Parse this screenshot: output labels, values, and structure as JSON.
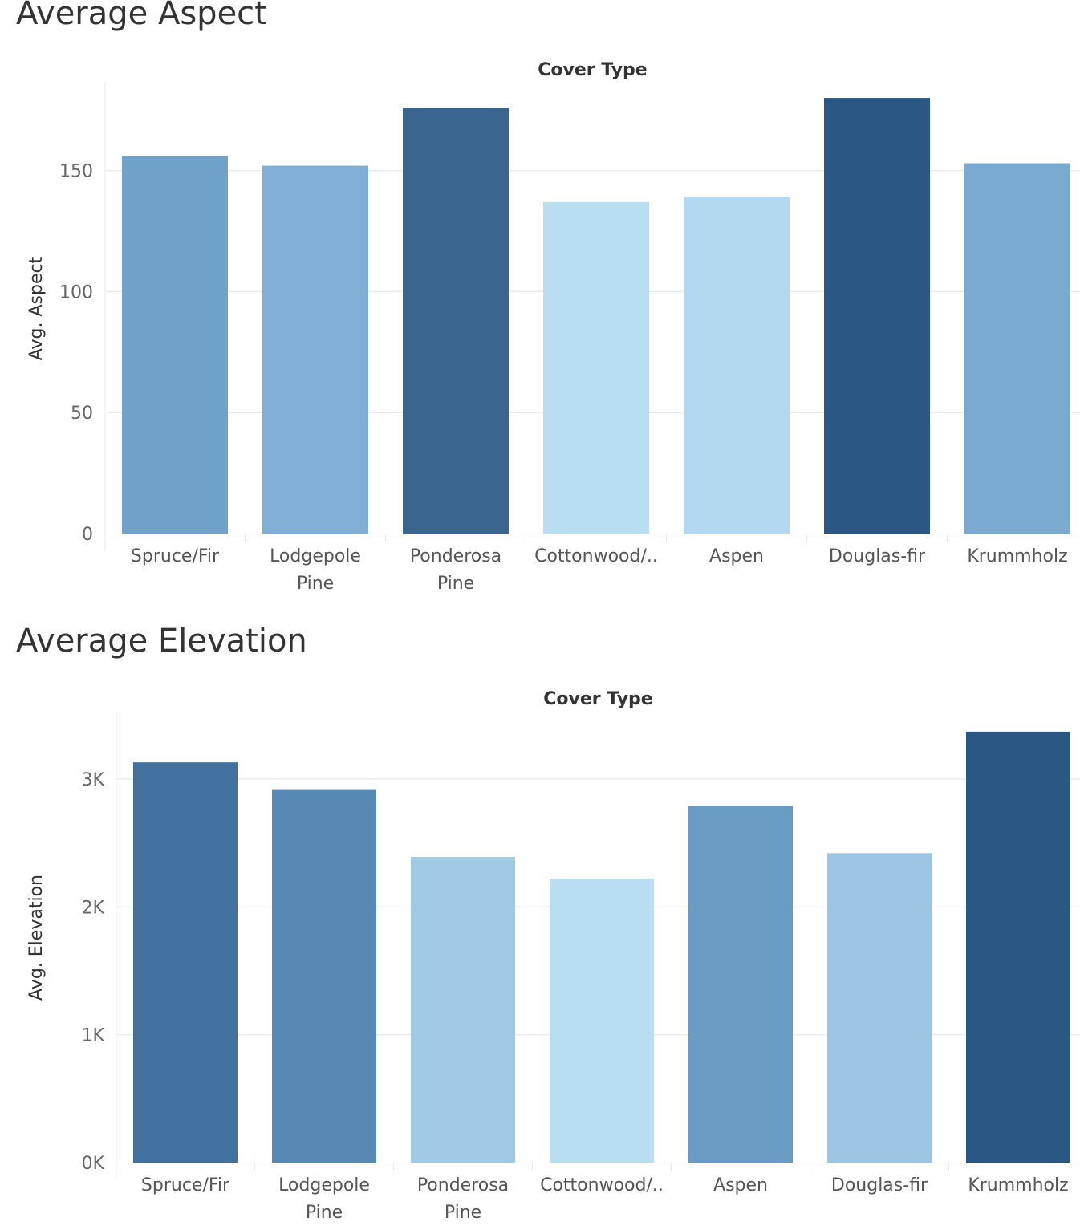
{
  "chart_data": [
    {
      "type": "bar",
      "title": "Average Aspect",
      "column_header": "Cover Type",
      "ylabel": "Avg. Aspect",
      "categories": [
        [
          "Spruce/Fir"
        ],
        [
          "Lodgepole",
          "Pine"
        ],
        [
          "Ponderosa",
          "Pine"
        ],
        [
          "Cottonwood/.."
        ],
        [
          "Aspen"
        ],
        [
          "Douglas-fir"
        ],
        [
          "Krummholz"
        ]
      ],
      "values": [
        156,
        152,
        176,
        137,
        139,
        180,
        153
      ],
      "colors": [
        "#71a3ca",
        "#80aed4",
        "#39658f",
        "#badef1",
        "#b4d8ef",
        "#2b5784",
        "#7baad0"
      ],
      "yticks": [
        0,
        50,
        100,
        150
      ],
      "ytick_labels": [
        "0",
        "50",
        "100",
        "150"
      ],
      "ylim": [
        0,
        186
      ],
      "grid": true
    },
    {
      "type": "bar",
      "title": "Average Elevation",
      "column_header": "Cover Type",
      "ylabel": "Avg. Elevation",
      "categories": [
        [
          "Spruce/Fir"
        ],
        [
          "Lodgepole",
          "Pine"
        ],
        [
          "Ponderosa",
          "Pine"
        ],
        [
          "Cottonwood/.."
        ],
        [
          "Aspen"
        ],
        [
          "Douglas-fir"
        ],
        [
          "Krummholz"
        ]
      ],
      "values": [
        3130,
        2920,
        2390,
        2220,
        2790,
        2420,
        3370
      ],
      "colors": [
        "#42709f",
        "#5789b4",
        "#a0c9e4",
        "#badef1",
        "#6a9bc3",
        "#9cc5e4",
        "#2b5784"
      ],
      "yticks": [
        0,
        1000,
        2000,
        3000
      ],
      "ytick_labels": [
        "0K",
        "1K",
        "2K",
        "3K"
      ],
      "ylim": [
        0,
        3520
      ],
      "grid": true
    }
  ]
}
